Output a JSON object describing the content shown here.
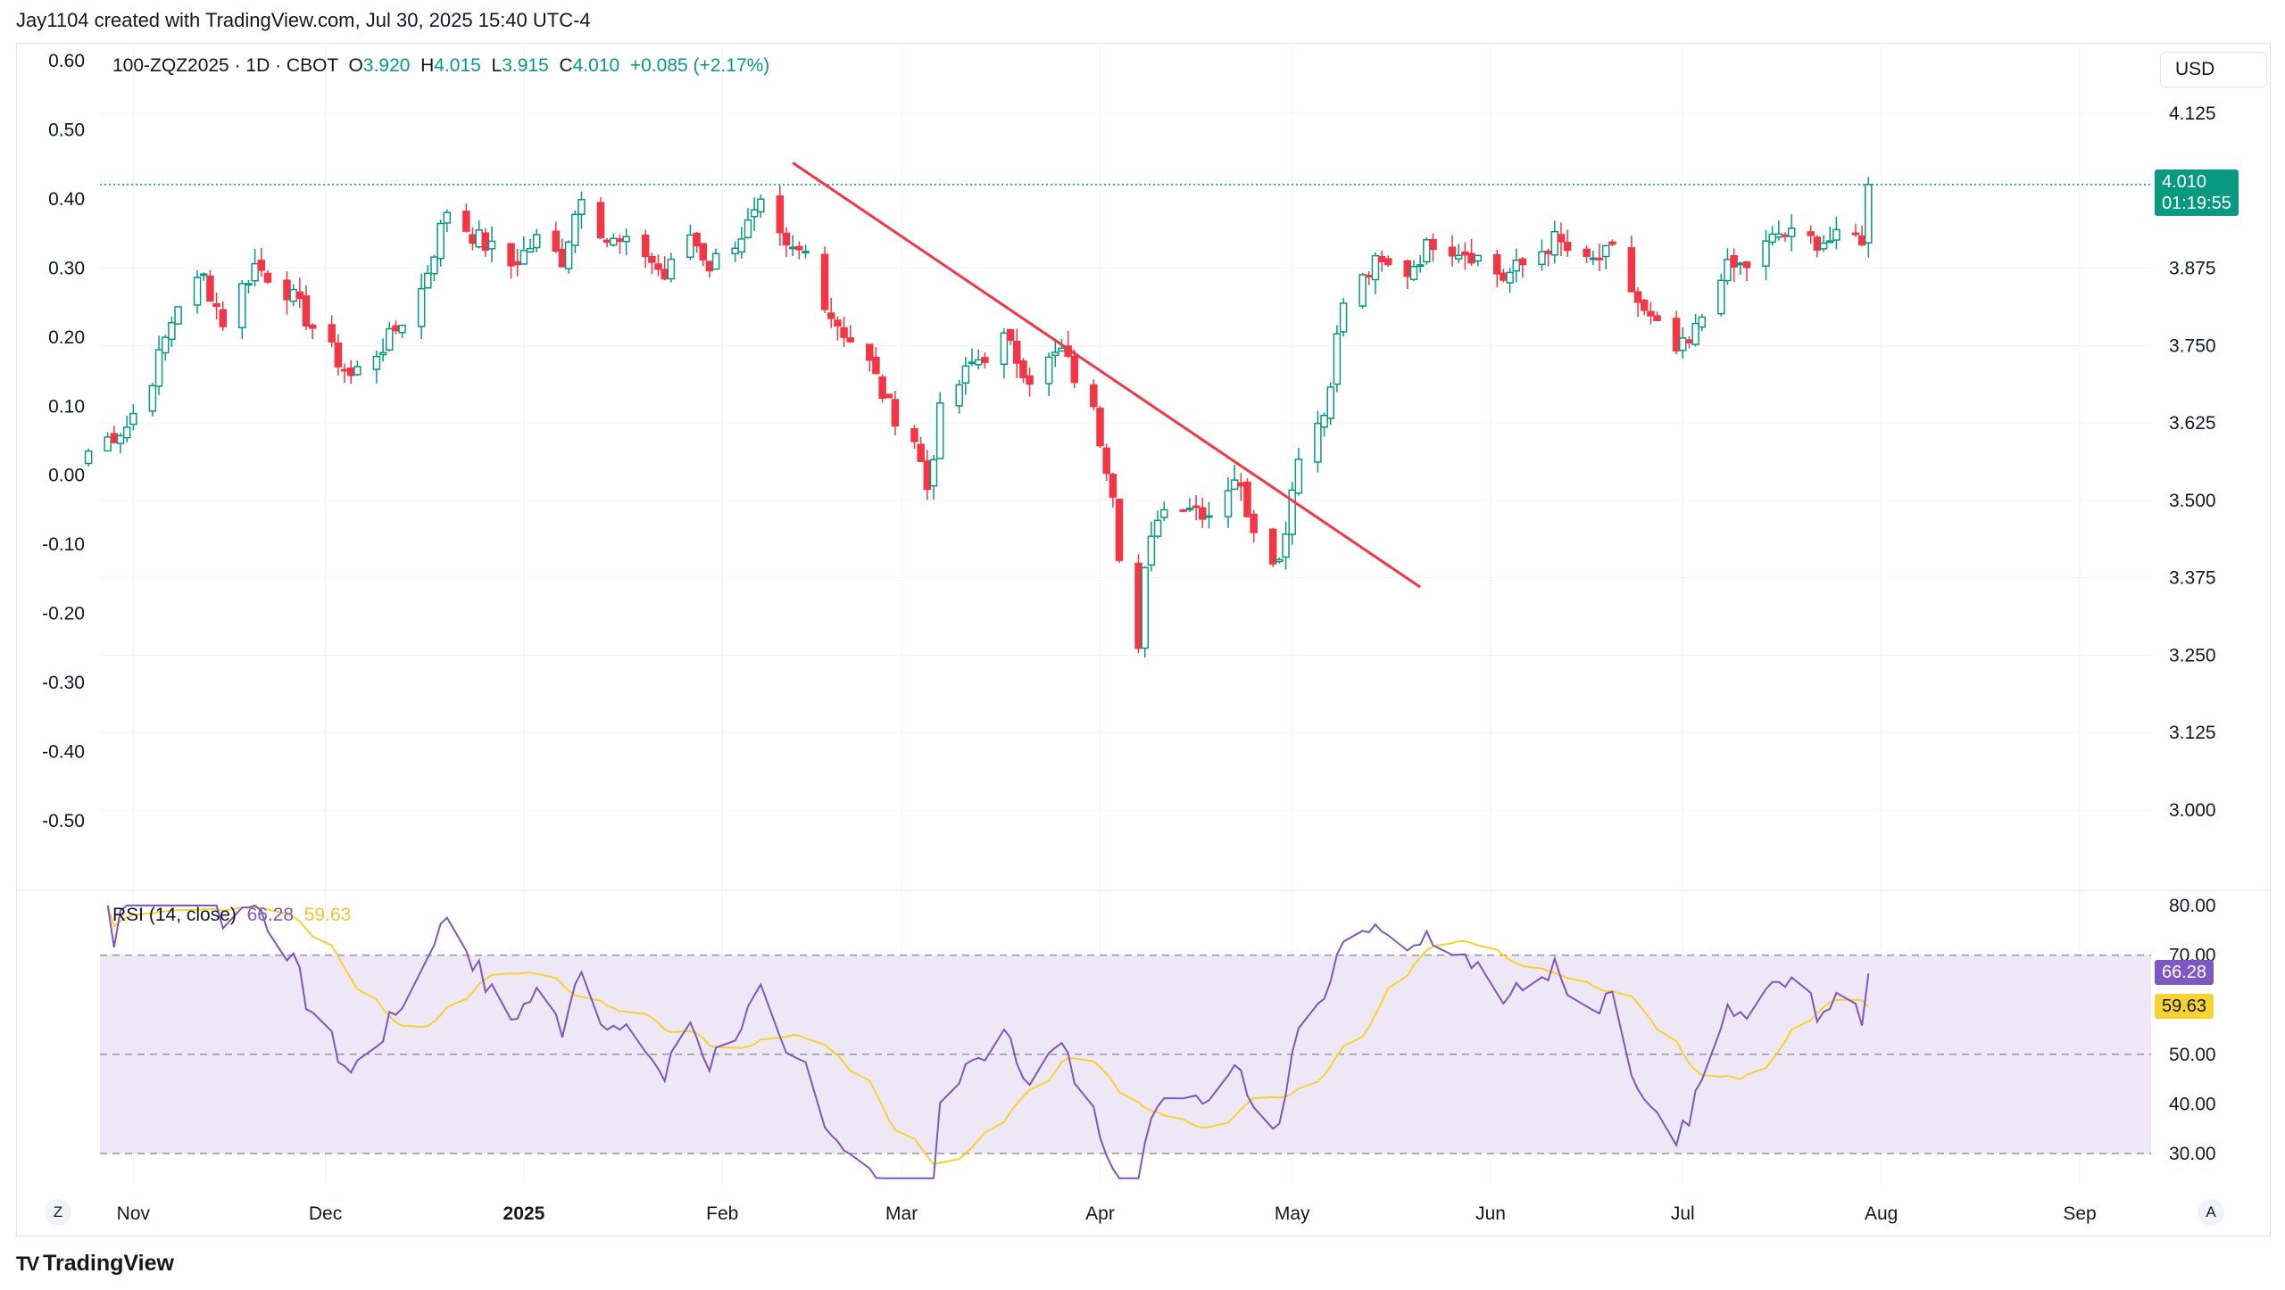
{
  "header": {
    "credit": "Jay1104 created with TradingView.com, Jul 30, 2025 15:40 UTC-4"
  },
  "legend": {
    "symbol": "100-ZQZ2025 · 1D · CBOT",
    "o_label": "O",
    "o_value": "3.920",
    "h_label": "H",
    "h_value": "4.015",
    "l_label": "L",
    "l_value": "3.915",
    "c_label": "C",
    "c_value": "4.010",
    "change": "+0.085 (+2.17%)"
  },
  "currency": "USD",
  "price_badge": {
    "price": "4.010",
    "countdown": "01:19:55"
  },
  "rsi_legend": {
    "name": "RSI (14, close)",
    "value": "66.28",
    "ma": "59.63"
  },
  "rsi_badges": {
    "value": "66.28",
    "ma": "59.63"
  },
  "footer": {
    "brand": "TradingView",
    "logo_mark": "TV"
  },
  "buttons": {
    "left": "Z",
    "right": "A"
  },
  "colors": {
    "up": "#089981",
    "down": "#f23645",
    "trendline": "#f23645",
    "rsi": "#7e57c2",
    "rsi_ma": "#f7d331",
    "rsi_band": "#ede7f6",
    "grid": "#f0f3fa"
  },
  "chart_data": [
    {
      "type": "candlestick",
      "title": "100-ZQZ2025 · 1D · CBOT",
      "y_right_ticks": [
        "4.125",
        "3.875",
        "3.750",
        "3.625",
        "3.500",
        "3.375",
        "3.250",
        "3.125",
        "3.000"
      ],
      "y_right_tick_values": [
        4.125,
        3.875,
        3.75,
        3.625,
        3.5,
        3.375,
        3.25,
        3.125,
        3.0
      ],
      "y_left_ticks": [
        "0.60",
        "0.50",
        "0.40",
        "0.30",
        "0.20",
        "0.10",
        "0.00",
        "-0.10",
        "-0.20",
        "-0.30",
        "-0.40",
        "-0.50"
      ],
      "y_left_tick_values": [
        0.6,
        0.5,
        0.4,
        0.3,
        0.2,
        0.1,
        0.0,
        -0.1,
        -0.2,
        -0.3,
        -0.4,
        -0.5
      ],
      "x_ticks": [
        "Nov",
        "Dec",
        "2025",
        "Feb",
        "Mar",
        "Apr",
        "May",
        "Jun",
        "Jul",
        "Aug",
        "Sep"
      ],
      "last_close": 4.01,
      "anchors": [
        [
          "2024-10-25",
          3.58
        ],
        [
          "2024-10-31",
          3.62
        ],
        [
          "2024-11-04",
          3.7
        ],
        [
          "2024-11-08",
          3.82
        ],
        [
          "2024-11-12",
          3.86
        ],
        [
          "2024-11-15",
          3.79
        ],
        [
          "2024-11-20",
          3.88
        ],
        [
          "2024-11-25",
          3.84
        ],
        [
          "2024-11-29",
          3.78
        ],
        [
          "2024-12-05",
          3.7
        ],
        [
          "2024-12-11",
          3.76
        ],
        [
          "2024-12-16",
          3.84
        ],
        [
          "2024-12-20",
          3.97
        ],
        [
          "2024-12-24",
          3.93
        ],
        [
          "2024-12-30",
          3.88
        ],
        [
          "2025-01-03",
          3.92
        ],
        [
          "2025-01-07",
          3.89
        ],
        [
          "2025-01-10",
          4.0
        ],
        [
          "2025-01-14",
          3.92
        ],
        [
          "2025-01-20",
          3.9
        ],
        [
          "2025-01-23",
          3.86
        ],
        [
          "2025-01-27",
          3.93
        ],
        [
          "2025-01-30",
          3.88
        ],
        [
          "2025-02-04",
          3.93
        ],
        [
          "2025-02-07",
          3.97
        ],
        [
          "2025-02-11",
          3.9
        ],
        [
          "2025-02-14",
          3.9
        ],
        [
          "2025-02-18",
          3.8
        ],
        [
          "2025-02-24",
          3.72
        ],
        [
          "2025-02-27",
          3.65
        ],
        [
          "2025-03-03",
          3.6
        ],
        [
          "2025-03-05",
          3.52
        ],
        [
          "2025-03-07",
          3.64
        ],
        [
          "2025-03-12",
          3.72
        ],
        [
          "2025-03-17",
          3.76
        ],
        [
          "2025-03-21",
          3.7
        ],
        [
          "2025-03-26",
          3.74
        ],
        [
          "2025-03-31",
          3.64
        ],
        [
          "2025-04-03",
          3.52
        ],
        [
          "2025-04-04",
          3.42
        ],
        [
          "2025-04-07",
          3.26
        ],
        [
          "2025-04-08",
          3.38
        ],
        [
          "2025-04-10",
          3.48
        ],
        [
          "2025-04-14",
          3.5
        ],
        [
          "2025-04-18",
          3.48
        ],
        [
          "2025-04-22",
          3.54
        ],
        [
          "2025-04-25",
          3.46
        ],
        [
          "2025-04-29",
          3.4
        ],
        [
          "2025-05-02",
          3.58
        ],
        [
          "2025-05-06",
          3.64
        ],
        [
          "2025-05-09",
          3.82
        ],
        [
          "2025-05-14",
          3.88
        ],
        [
          "2025-05-19",
          3.87
        ],
        [
          "2025-05-23",
          3.92
        ],
        [
          "2025-05-29",
          3.9
        ],
        [
          "2025-06-03",
          3.86
        ],
        [
          "2025-06-06",
          3.88
        ],
        [
          "2025-06-11",
          3.92
        ],
        [
          "2025-06-16",
          3.88
        ],
        [
          "2025-06-20",
          3.9
        ],
        [
          "2025-06-25",
          3.8
        ],
        [
          "2025-06-30",
          3.74
        ],
        [
          "2025-07-02",
          3.75
        ],
        [
          "2025-07-07",
          3.87
        ],
        [
          "2025-07-11",
          3.88
        ],
        [
          "2025-07-16",
          3.93
        ],
        [
          "2025-07-21",
          3.92
        ],
        [
          "2025-07-25",
          3.92
        ],
        [
          "2025-07-29",
          3.925
        ],
        [
          "2025-07-30",
          4.01
        ]
      ],
      "trendline": {
        "from": [
          "2025-02-12",
          4.045
        ],
        "to": [
          "2025-05-21",
          3.36
        ]
      },
      "reference_line": 4.01
    },
    {
      "type": "line",
      "title": "RSI (14, close)",
      "y_ticks": [
        "80.00",
        "70.00",
        "50.00",
        "40.00",
        "30.00"
      ],
      "y_tick_values": [
        80,
        70,
        50,
        40,
        30
      ],
      "band": [
        30,
        70
      ],
      "mid_line": 50,
      "series": [
        {
          "name": "RSI",
          "last": 66.28
        },
        {
          "name": "RSI MA",
          "last": 59.63
        }
      ]
    }
  ]
}
